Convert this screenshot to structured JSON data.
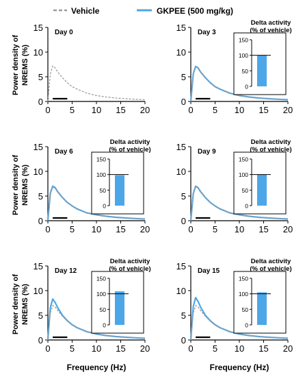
{
  "legend": {
    "vehicle_label": "Vehicle",
    "gkpee_label": "GKPEE (500 mg/kg)",
    "vehicle_color": "#9b9b9b",
    "gkpee_color": "#4da6e8"
  },
  "ylabel_line1": "Power density of",
  "ylabel_line2": "NREMS (%)",
  "xlabel": "Frequency (Hz)",
  "inset_title_line1": "Delta activity",
  "inset_title_line2": "(% of vehicle)",
  "chart_data": [
    {
      "type": "line",
      "panel": "Day 0",
      "x": [
        0,
        0.5,
        1,
        1.5,
        2,
        3,
        4,
        5,
        6,
        8,
        10,
        12,
        14,
        16,
        18,
        20
      ],
      "series": [
        {
          "name": "Vehicle",
          "values": [
            0,
            5.5,
            7.2,
            6.8,
            6.0,
            4.8,
            3.8,
            3.0,
            2.5,
            1.7,
            1.2,
            0.9,
            0.7,
            0.55,
            0.45,
            0.35
          ]
        }
      ],
      "xlim": [
        0,
        20
      ],
      "ylim": [
        0,
        15
      ],
      "xticks": [
        0,
        5,
        10,
        15,
        20
      ],
      "yticks": [
        0,
        5,
        10,
        15
      ],
      "delta_band": [
        1,
        4
      ]
    },
    {
      "type": "line",
      "panel": "Day 3",
      "x": [
        0,
        0.5,
        1,
        1.5,
        2,
        3,
        4,
        5,
        6,
        8,
        10,
        12,
        14,
        16,
        18,
        20
      ],
      "series": [
        {
          "name": "Vehicle",
          "values": [
            0,
            5.5,
            7.0,
            6.7,
            6.0,
            4.8,
            3.8,
            3.0,
            2.5,
            1.7,
            1.2,
            0.9,
            0.7,
            0.55,
            0.45,
            0.35
          ]
        },
        {
          "name": "GKPEE (500 mg/kg)",
          "values": [
            0,
            5.6,
            7.1,
            6.8,
            6.0,
            4.8,
            3.8,
            3.0,
            2.5,
            1.7,
            1.2,
            0.9,
            0.7,
            0.55,
            0.45,
            0.35
          ]
        }
      ],
      "xlim": [
        0,
        20
      ],
      "ylim": [
        0,
        15
      ],
      "xticks": [
        0,
        5,
        10,
        15,
        20
      ],
      "yticks": [
        0,
        5,
        10,
        15
      ],
      "delta_band": [
        1,
        4
      ],
      "inset": {
        "type": "bar",
        "value": 100,
        "ylim": [
          0,
          150
        ],
        "yticks": [
          0,
          50,
          100,
          150
        ],
        "reference": 100
      }
    },
    {
      "type": "line",
      "panel": "Day 6",
      "x": [
        0,
        0.5,
        1,
        1.5,
        2,
        3,
        4,
        5,
        6,
        8,
        10,
        12,
        14,
        16,
        18,
        20
      ],
      "series": [
        {
          "name": "Vehicle",
          "values": [
            0,
            5.4,
            6.8,
            6.6,
            5.9,
            4.7,
            3.7,
            3.0,
            2.4,
            1.6,
            1.2,
            0.9,
            0.7,
            0.55,
            0.45,
            0.35
          ]
        },
        {
          "name": "GKPEE (500 mg/kg)",
          "values": [
            0,
            5.5,
            7.0,
            6.7,
            5.9,
            4.7,
            3.7,
            3.0,
            2.4,
            1.6,
            1.2,
            0.9,
            0.7,
            0.55,
            0.45,
            0.35
          ]
        }
      ],
      "xlim": [
        0,
        20
      ],
      "ylim": [
        0,
        15
      ],
      "xticks": [
        0,
        5,
        10,
        15,
        20
      ],
      "yticks": [
        0,
        5,
        10,
        15
      ],
      "delta_band": [
        1,
        4
      ],
      "inset": {
        "type": "bar",
        "value": 98,
        "ylim": [
          0,
          150
        ],
        "yticks": [
          0,
          50,
          100,
          150
        ],
        "reference": 100
      }
    },
    {
      "type": "line",
      "panel": "Day 9",
      "x": [
        0,
        0.5,
        1,
        1.5,
        2,
        3,
        4,
        5,
        6,
        8,
        10,
        12,
        14,
        16,
        18,
        20
      ],
      "series": [
        {
          "name": "Vehicle",
          "values": [
            0,
            5.4,
            6.9,
            6.6,
            5.9,
            4.7,
            3.7,
            3.0,
            2.4,
            1.6,
            1.2,
            0.9,
            0.7,
            0.55,
            0.45,
            0.35
          ]
        },
        {
          "name": "GKPEE (500 mg/kg)",
          "values": [
            0,
            5.5,
            7.0,
            6.7,
            5.9,
            4.7,
            3.7,
            3.0,
            2.4,
            1.6,
            1.2,
            0.9,
            0.7,
            0.55,
            0.45,
            0.35
          ]
        }
      ],
      "xlim": [
        0,
        20
      ],
      "ylim": [
        0,
        15
      ],
      "xticks": [
        0,
        5,
        10,
        15,
        20
      ],
      "yticks": [
        0,
        5,
        10,
        15
      ],
      "delta_band": [
        1,
        4
      ],
      "inset": {
        "type": "bar",
        "value": 100,
        "ylim": [
          0,
          150
        ],
        "yticks": [
          0,
          50,
          100,
          150
        ],
        "reference": 100
      }
    },
    {
      "type": "line",
      "panel": "Day 12",
      "x": [
        0,
        0.5,
        1,
        1.5,
        2,
        3,
        4,
        5,
        6,
        8,
        10,
        12,
        14,
        16,
        18,
        20
      ],
      "series": [
        {
          "name": "Vehicle",
          "values": [
            0,
            5.4,
            7.0,
            6.7,
            6.0,
            4.8,
            3.8,
            3.0,
            2.5,
            1.7,
            1.2,
            0.9,
            0.7,
            0.55,
            0.45,
            0.35
          ]
        },
        {
          "name": "GKPEE (500 mg/kg)",
          "values": [
            0,
            6.5,
            8.3,
            7.6,
            6.6,
            5.0,
            3.9,
            3.1,
            2.5,
            1.7,
            1.2,
            0.9,
            0.7,
            0.55,
            0.45,
            0.35
          ]
        }
      ],
      "xlim": [
        0,
        20
      ],
      "ylim": [
        0,
        15
      ],
      "xticks": [
        0,
        5,
        10,
        15,
        20
      ],
      "yticks": [
        0,
        5,
        10,
        15
      ],
      "delta_band": [
        1,
        4
      ],
      "inset": {
        "type": "bar",
        "value": 108,
        "ylim": [
          0,
          150
        ],
        "yticks": [
          0,
          50,
          100,
          150
        ],
        "reference": 100
      }
    },
    {
      "type": "line",
      "panel": "Day 15",
      "x": [
        0,
        0.5,
        1,
        1.5,
        2,
        3,
        4,
        5,
        6,
        8,
        10,
        12,
        14,
        16,
        18,
        20
      ],
      "series": [
        {
          "name": "Vehicle",
          "values": [
            0,
            5.4,
            7.0,
            6.7,
            6.0,
            4.8,
            3.8,
            3.0,
            2.5,
            1.7,
            1.2,
            0.9,
            0.7,
            0.55,
            0.45,
            0.35
          ]
        },
        {
          "name": "GKPEE (500 mg/kg)",
          "values": [
            0,
            6.8,
            8.6,
            7.8,
            6.7,
            5.0,
            3.9,
            3.1,
            2.5,
            1.7,
            1.2,
            0.9,
            0.7,
            0.55,
            0.45,
            0.35
          ]
        }
      ],
      "xlim": [
        0,
        20
      ],
      "ylim": [
        0,
        15
      ],
      "xticks": [
        0,
        5,
        10,
        15,
        20
      ],
      "yticks": [
        0,
        5,
        10,
        15
      ],
      "delta_band": [
        1,
        4
      ],
      "inset": {
        "type": "bar",
        "value": 105,
        "ylim": [
          0,
          150
        ],
        "yticks": [
          0,
          50,
          100,
          150
        ],
        "reference": 100
      }
    }
  ]
}
